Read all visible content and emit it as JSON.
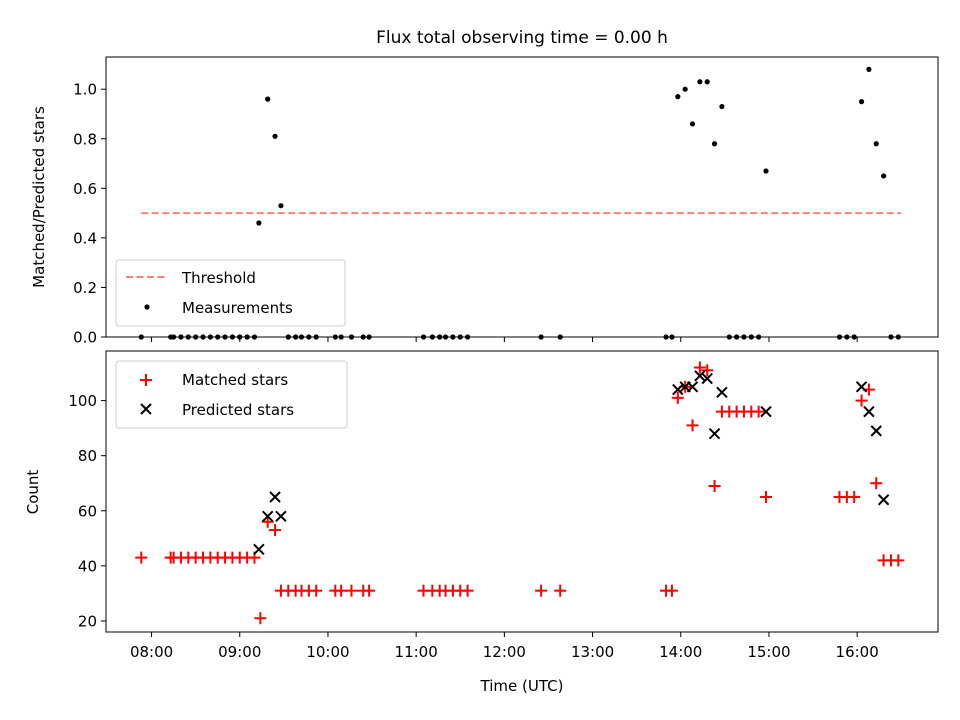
{
  "chart_data": [
    {
      "type": "scatter",
      "title": "Flux total observing time = 0.00 h",
      "xlabel": "",
      "ylabel": "Matched/Predicted stars",
      "xlim": [
        "07:29",
        "16:55"
      ],
      "ylim": [
        0,
        1.13
      ],
      "yticks": [
        0.0,
        0.2,
        0.4,
        0.6,
        0.8,
        1.0
      ],
      "ytick_labels": [
        "0.0",
        "0.2",
        "0.4",
        "0.6",
        "0.8",
        "1.0"
      ],
      "grid": false,
      "legend_position": "lower-left",
      "colors": {
        "threshold": "#ff7f7f",
        "measurements": "#000000"
      },
      "series": [
        {
          "name": "Threshold",
          "type": "line",
          "style": "dashed",
          "x": [
            "07:53",
            "16:30"
          ],
          "y": [
            0.5,
            0.5
          ]
        },
        {
          "name": "Measurements",
          "type": "scatter",
          "x": [
            "07:53",
            "08:13",
            "08:15",
            "08:20",
            "08:25",
            "08:30",
            "08:35",
            "08:40",
            "08:45",
            "08:50",
            "08:55",
            "09:00",
            "09:05",
            "09:10",
            "09:13",
            "09:19",
            "09:24",
            "09:28",
            "09:33",
            "09:38",
            "09:42",
            "09:47",
            "09:52",
            "10:05",
            "10:09",
            "10:16",
            "10:24",
            "10:28",
            "11:05",
            "11:11",
            "11:16",
            "11:20",
            "11:25",
            "11:30",
            "11:35",
            "12:25",
            "12:38",
            "13:50",
            "13:54",
            "13:58",
            "14:03",
            "14:08",
            "14:13",
            "14:18",
            "14:23",
            "14:28",
            "14:33",
            "14:38",
            "14:43",
            "14:48",
            "14:53",
            "14:58",
            "15:48",
            "15:53",
            "15:58",
            "16:03",
            "16:08",
            "16:13",
            "16:18",
            "16:23",
            "16:28"
          ],
          "y": [
            0,
            0,
            0,
            0,
            0,
            0,
            0,
            0,
            0,
            0,
            0,
            0,
            0,
            0,
            0.46,
            0.96,
            0.81,
            0.53,
            0,
            0,
            0,
            0,
            0,
            0,
            0,
            0,
            0,
            0,
            0,
            0,
            0,
            0,
            0,
            0,
            0,
            0,
            0,
            0,
            0,
            0.97,
            1.0,
            0.86,
            1.03,
            1.03,
            0.78,
            0.93,
            0,
            0,
            0,
            0,
            0,
            0.67,
            0,
            0,
            0,
            0.95,
            1.08,
            0.78,
            0.65,
            0,
            0
          ]
        }
      ]
    },
    {
      "type": "scatter",
      "title": "",
      "xlabel": "Time (UTC)",
      "ylabel": "Count",
      "xlim": [
        "07:29",
        "16:55"
      ],
      "ylim": [
        16,
        118
      ],
      "xtick_labels": [
        "08:00",
        "09:00",
        "10:00",
        "11:00",
        "12:00",
        "13:00",
        "14:00",
        "15:00",
        "16:00"
      ],
      "yticks": [
        20,
        40,
        60,
        80,
        100
      ],
      "ytick_labels": [
        "20",
        "40",
        "60",
        "80",
        "100"
      ],
      "grid": false,
      "legend_position": "upper-left",
      "colors": {
        "matched": "#ff0000",
        "predicted": "#000000"
      },
      "series": [
        {
          "name": "Matched stars",
          "marker": "plus",
          "x": [
            "07:53",
            "08:13",
            "08:15",
            "08:20",
            "08:25",
            "08:30",
            "08:35",
            "08:40",
            "08:45",
            "08:50",
            "08:55",
            "09:00",
            "09:05",
            "09:10",
            "09:14",
            "09:19",
            "09:24",
            "09:28",
            "09:33",
            "09:38",
            "09:42",
            "09:47",
            "09:52",
            "10:05",
            "10:09",
            "10:16",
            "10:24",
            "10:28",
            "11:05",
            "11:11",
            "11:16",
            "11:20",
            "11:25",
            "11:30",
            "11:35",
            "12:25",
            "12:38",
            "13:50",
            "13:54",
            "13:58",
            "14:03",
            "14:08",
            "14:13",
            "14:18",
            "14:23",
            "14:28",
            "14:33",
            "14:38",
            "14:43",
            "14:48",
            "14:53",
            "14:58",
            "15:48",
            "15:53",
            "15:58",
            "16:03",
            "16:08",
            "16:13",
            "16:18",
            "16:23",
            "16:28"
          ],
          "y": [
            43,
            43,
            43,
            43,
            43,
            43,
            43,
            43,
            43,
            43,
            43,
            43,
            43,
            43,
            21,
            56,
            53,
            31,
            31,
            31,
            31,
            31,
            31,
            31,
            31,
            31,
            31,
            31,
            31,
            31,
            31,
            31,
            31,
            31,
            31,
            31,
            31,
            31,
            31,
            101,
            105,
            91,
            112,
            111,
            69,
            96,
            96,
            96,
            96,
            96,
            96,
            65,
            65,
            65,
            65,
            100,
            104,
            70,
            42,
            42,
            42
          ]
        },
        {
          "name": "Predicted stars",
          "marker": "x",
          "x": [
            "09:13",
            "09:19",
            "09:24",
            "09:28",
            "13:58",
            "14:03",
            "14:08",
            "14:13",
            "14:18",
            "14:23",
            "14:28",
            "14:58",
            "16:03",
            "16:08",
            "16:13",
            "16:18"
          ],
          "y": [
            46,
            58,
            65,
            58,
            104,
            105,
            105,
            109,
            108,
            88,
            103,
            96,
            105,
            96,
            89,
            64
          ]
        }
      ]
    }
  ]
}
